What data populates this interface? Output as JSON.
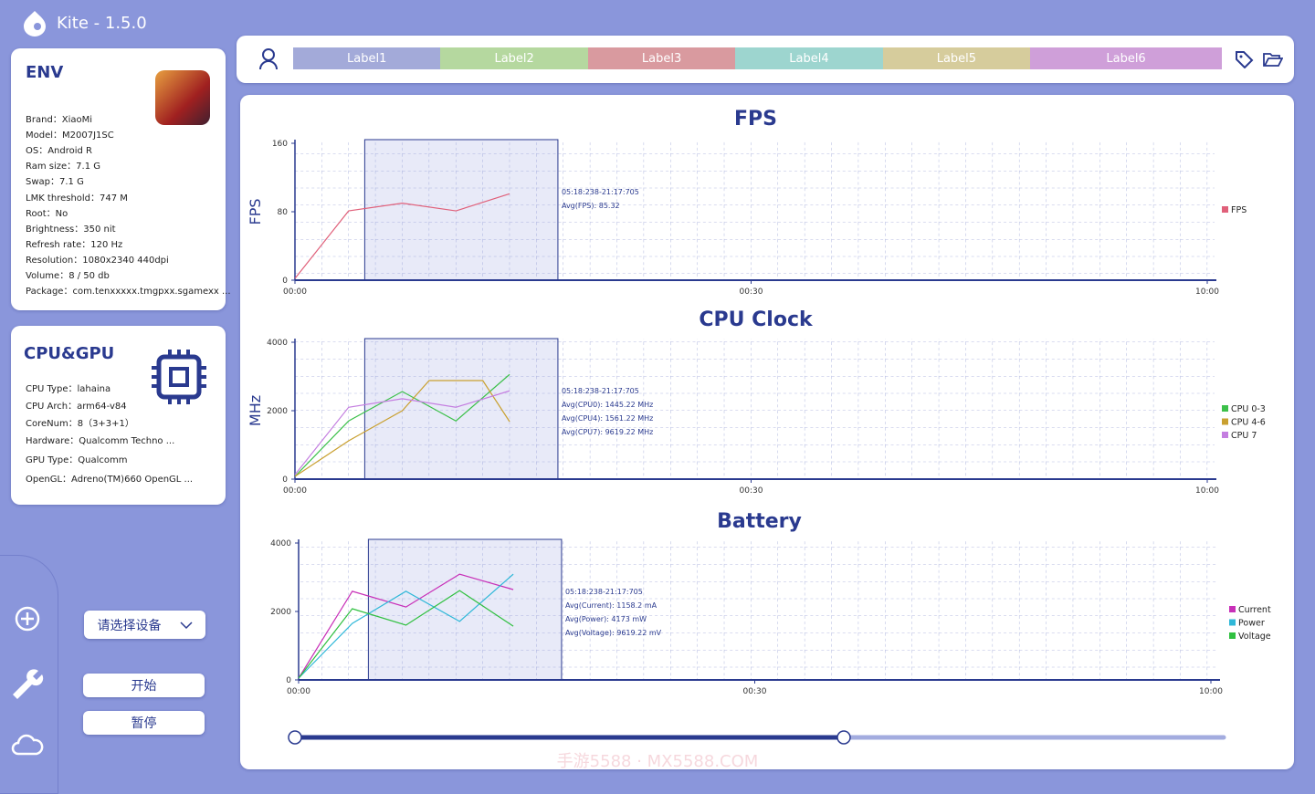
{
  "app": {
    "title": "Kite - 1.5.0"
  },
  "env": {
    "title": "ENV",
    "rows": [
      "Brand：XiaoMi",
      "Model：M2007J1SC",
      "OS：Android R",
      "Ram size：7.1 G",
      "Swap：7.1 G",
      "LMK threshold：747 M",
      "Root：No",
      "Brightness：350 nit",
      "Refresh rate：120 Hz",
      "Resolution：1080x2340 440dpi",
      "Volume：8 / 50 db",
      "Package：com.tenxxxxx.tmgpxx.sgamexx ..."
    ]
  },
  "cpu_gpu": {
    "title": "CPU&GPU",
    "rows": [
      "CPU Type：lahaina",
      "CPU Arch：arm64-v84",
      "CoreNum：8（3+3+1）",
      "Hardware：Qualcomm Techno ...",
      "GPU Type：Qualcomm",
      "OpenGL：Adreno(TM)660 OpenGL ..."
    ]
  },
  "labels": [
    {
      "text": "Label1",
      "color": "#a3aad9"
    },
    {
      "text": "Label2",
      "color": "#b5d89f"
    },
    {
      "text": "Label3",
      "color": "#d99a9f"
    },
    {
      "text": "Label4",
      "color": "#9dd5cf"
    },
    {
      "text": "Label5",
      "color": "#d6cc9c"
    },
    {
      "text": "Label6",
      "color": "#cf9fd9"
    }
  ],
  "controls": {
    "device_select": "请选择设备",
    "start": "开始",
    "pause": "暂停"
  },
  "watermark": "手游5588 · MX5588.COM",
  "chart_data": [
    {
      "type": "line",
      "title": "FPS",
      "y_label": "FPS",
      "xlim": [
        0,
        34
      ],
      "xticks": [
        {
          "value": 0,
          "label": "00:00"
        },
        {
          "value": 17,
          "label": "00:30"
        },
        {
          "value": 34,
          "label": "10:00"
        }
      ],
      "ylim": [
        0,
        160
      ],
      "yticks": [
        0,
        80,
        160
      ],
      "highlight": [
        2.6,
        9.8
      ],
      "annotation": [
        "05:18:238-21:17:705",
        "Avg(FPS): 85.32"
      ],
      "series": [
        {
          "name": "FPS",
          "color": "#e0607a",
          "x": [
            0,
            2,
            4,
            6,
            8
          ],
          "values": [
            2,
            81,
            90,
            81,
            101
          ]
        }
      ]
    },
    {
      "type": "line",
      "title": "CPU Clock",
      "y_label": "MHz",
      "xlim": [
        0,
        34
      ],
      "xticks": [
        {
          "value": 0,
          "label": "00:00"
        },
        {
          "value": 17,
          "label": "00:30"
        },
        {
          "value": 34,
          "label": "10:00"
        }
      ],
      "ylim": [
        0,
        4000
      ],
      "yticks": [
        0,
        2000,
        4000
      ],
      "highlight": [
        2.6,
        9.8
      ],
      "annotation": [
        "05:18:238-21:17:705",
        "Avg(CPU0): 1445.22 MHz",
        "Avg(CPU4): 1561.22 MHz",
        "Avg(CPU7): 9619.22 MHz"
      ],
      "series": [
        {
          "name": "CPU 0-3",
          "color": "#3cc04a",
          "x": [
            0,
            2,
            4,
            6,
            8
          ],
          "values": [
            80,
            1700,
            2560,
            1700,
            3060
          ]
        },
        {
          "name": "CPU 4-6",
          "color": "#c9a030",
          "x": [
            0,
            2,
            4,
            5,
            7,
            8
          ],
          "values": [
            80,
            1120,
            2000,
            2880,
            2880,
            1680
          ]
        },
        {
          "name": "CPU 7",
          "color": "#c47ee0",
          "x": [
            0,
            2,
            4,
            6,
            8
          ],
          "values": [
            130,
            2100,
            2350,
            2100,
            2580
          ]
        }
      ]
    },
    {
      "type": "line",
      "title": "Battery",
      "xlim": [
        0,
        34
      ],
      "xticks": [
        {
          "value": 0,
          "label": "00:00"
        },
        {
          "value": 17,
          "label": "00:30"
        },
        {
          "value": 34,
          "label": "10:00"
        }
      ],
      "ylim": [
        0,
        4000
      ],
      "yticks": [
        0,
        2000,
        4000
      ],
      "highlight": [
        2.6,
        9.8
      ],
      "annotation": [
        "05:18:238-21:17:705",
        "Avg(Current): 1158.2 mA",
        "Avg(Power): 4173 mW",
        "Avg(Voltage): 9619.22 mV"
      ],
      "series": [
        {
          "name": "Current",
          "color": "#c830b8",
          "x": [
            0,
            2,
            4,
            6,
            8
          ],
          "values": [
            50,
            2590,
            2130,
            3090,
            2640
          ]
        },
        {
          "name": "Power",
          "color": "#30b8d8",
          "x": [
            0,
            2,
            4,
            6,
            8
          ],
          "values": [
            50,
            1650,
            2590,
            1710,
            3090
          ]
        },
        {
          "name": "Voltage",
          "color": "#30c040",
          "x": [
            0,
            2,
            4,
            6,
            8
          ],
          "values": [
            50,
            2080,
            1600,
            2610,
            1570
          ]
        }
      ]
    }
  ]
}
